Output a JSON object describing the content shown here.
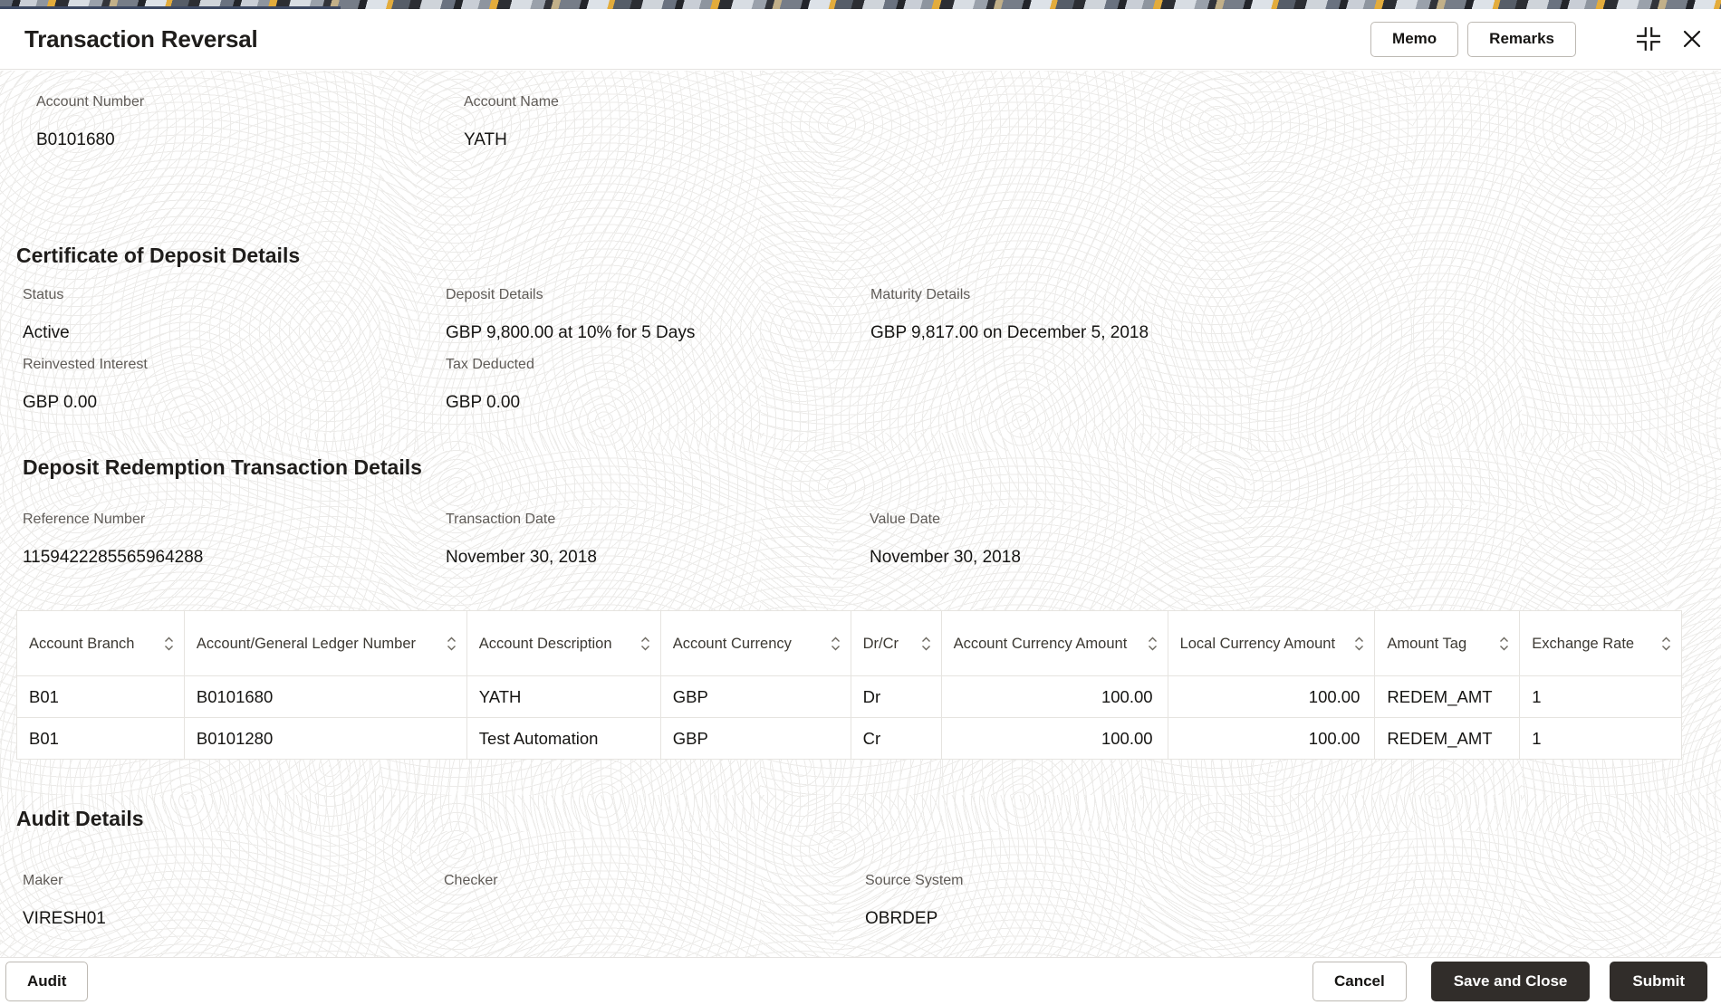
{
  "header": {
    "title": "Transaction Reversal",
    "memo_label": "Memo",
    "remarks_label": "Remarks"
  },
  "account": {
    "number_label": "Account Number",
    "number_value": "B0101680",
    "name_label": "Account Name",
    "name_value": "YATH"
  },
  "cod": {
    "heading": "Certificate of Deposit Details",
    "status_label": "Status",
    "status_value": "Active",
    "deposit_label": "Deposit Details",
    "deposit_value": "GBP 9,800.00 at 10% for 5 Days",
    "maturity_label": "Maturity Details",
    "maturity_value": "GBP 9,817.00 on December 5, 2018",
    "reinvested_label": "Reinvested Interest",
    "reinvested_value": "GBP 0.00",
    "tax_label": "Tax Deducted",
    "tax_value": "GBP 0.00"
  },
  "redemption": {
    "heading": "Deposit Redemption Transaction Details",
    "reference_label": "Reference Number",
    "reference_value": "1159422285565964288",
    "txn_date_label": "Transaction Date",
    "txn_date_value": "November 30, 2018",
    "value_date_label": "Value Date",
    "value_date_value": "November 30, 2018",
    "table": {
      "columns": [
        "Account Branch",
        "Account/General Ledger Number",
        "Account Description",
        "Account Currency",
        "Dr/Cr",
        "Account Currency Amount",
        "Local Currency Amount",
        "Amount Tag",
        "Exchange Rate"
      ],
      "numeric_columns": [
        5,
        6
      ],
      "rows": [
        [
          "B01",
          "B0101680",
          "YATH",
          "GBP",
          "Dr",
          "100.00",
          "100.00",
          "REDEM_AMT",
          "1"
        ],
        [
          "B01",
          "B0101280",
          "Test Automation",
          "GBP",
          "Cr",
          "100.00",
          "100.00",
          "REDEM_AMT",
          "1"
        ]
      ]
    }
  },
  "audit": {
    "heading": "Audit Details",
    "maker_label": "Maker",
    "maker_value": "VIRESH01",
    "checker_label": "Checker",
    "checker_value": "",
    "source_label": "Source System",
    "source_value": "OBRDEP"
  },
  "footer": {
    "audit_label": "Audit",
    "cancel_label": "Cancel",
    "save_close_label": "Save and Close",
    "submit_label": "Submit"
  },
  "colors": {
    "primary_dark": "#312d2a",
    "tab_accent": "#3d4963",
    "label_gray": "#5f5b57",
    "text_dark": "#161513",
    "border": "#e5e3e1",
    "pattern_yellow": "#e3ac3c"
  }
}
